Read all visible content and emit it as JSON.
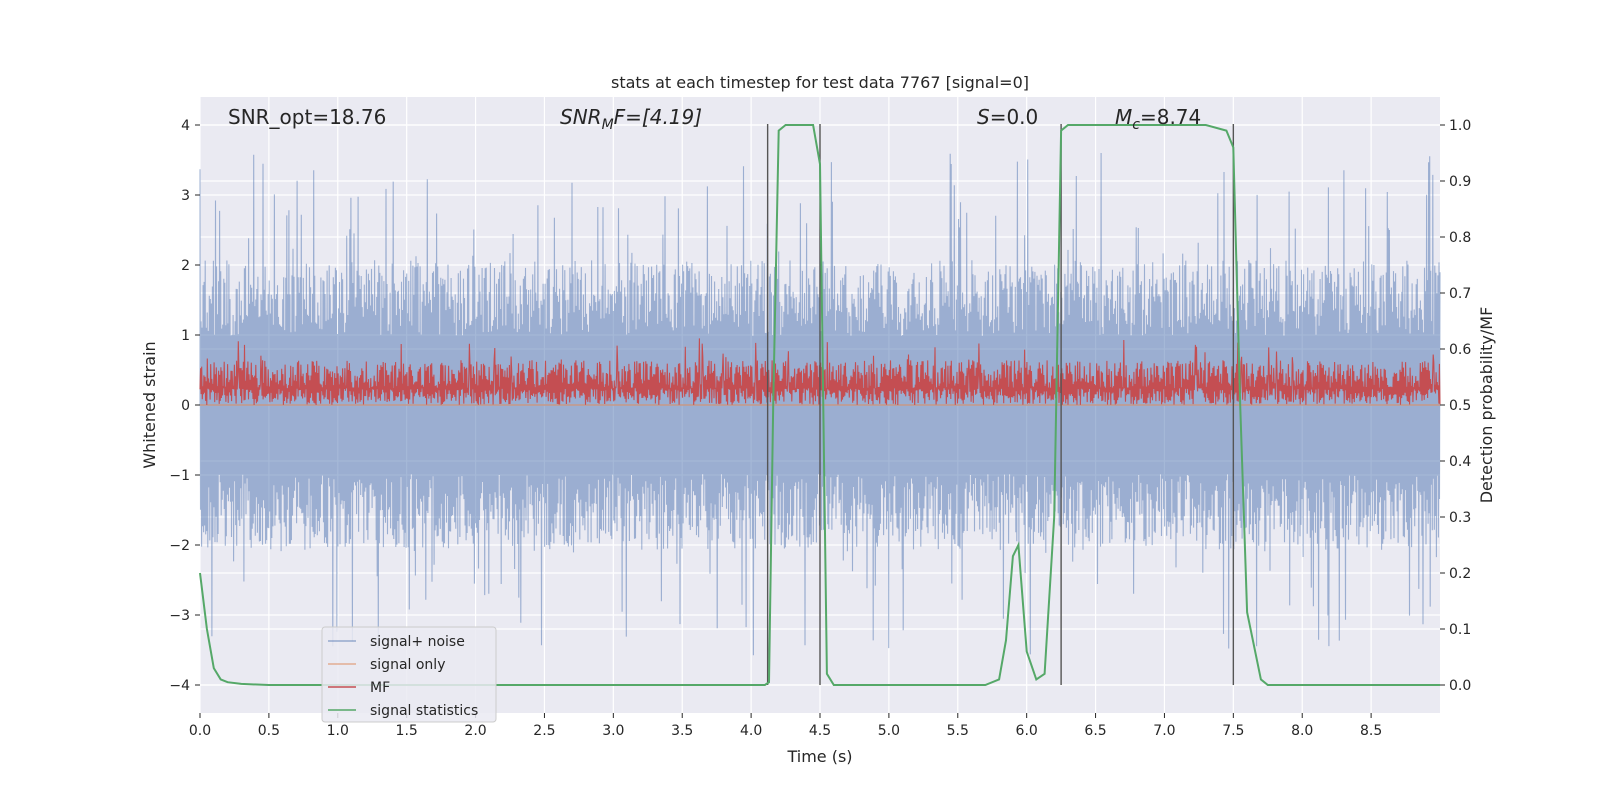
{
  "chart_data": {
    "type": "line",
    "title": "stats at each timestep for test data 7767 [signal=0]",
    "xlabel": "Time (s)",
    "ylabel_left": "Whitened strain",
    "ylabel_right": "Detection probability/MF",
    "xlim": [
      0,
      9
    ],
    "ylim_left": [
      -4.4,
      4.4
    ],
    "ylim_right": [
      -0.05,
      1.05
    ],
    "xticks": [
      0.0,
      0.5,
      1.0,
      1.5,
      2.0,
      2.5,
      3.0,
      3.5,
      4.0,
      4.5,
      5.0,
      5.5,
      6.0,
      6.5,
      7.0,
      7.5,
      8.0,
      8.5
    ],
    "xtick_labels": [
      "0.0",
      "0.5",
      "1.0",
      "1.5",
      "2.0",
      "2.5",
      "3.0",
      "3.5",
      "4.0",
      "4.5",
      "5.0",
      "5.5",
      "6.0",
      "6.5",
      "7.0",
      "7.5",
      "8.0",
      "8.5"
    ],
    "yticks_left": [
      4,
      3,
      2,
      1,
      0,
      -1,
      -2,
      -3,
      -4
    ],
    "ytick_labels_left": [
      "4",
      "3",
      "2",
      "1",
      "0",
      "−1",
      "−2",
      "−3",
      "−4"
    ],
    "yticks_right": [
      1.0,
      0.9,
      0.8,
      0.7,
      0.6,
      0.5,
      0.4,
      0.3,
      0.2,
      0.1,
      0.0
    ],
    "ytick_labels_right": [
      "1.0",
      "0.9",
      "0.8",
      "0.7",
      "0.6",
      "0.5",
      "0.4",
      "0.3",
      "0.2",
      "0.1",
      "0.0"
    ],
    "annotations": {
      "snr_opt": "SNR_opt=18.76",
      "snr_mf_main": "SNR",
      "snr_mf_sub": "M",
      "snr_mf_rest": "F=[4.19]",
      "s_main": "S",
      "s_rest": "=0.0",
      "mc_main": "M",
      "mc_sub": "c",
      "mc_rest": "=8.74"
    },
    "series": [
      {
        "name": "signal+ noise",
        "axis": "left",
        "color": "#4c72b0",
        "style": "noise",
        "amplitude_typical": 1.8,
        "amplitude_peak": 3.6
      },
      {
        "name": "signal only",
        "axis": "left",
        "color": "#dd8452",
        "style": "flat",
        "value": 0
      },
      {
        "name": "MF",
        "axis": "right",
        "color": "#c44e52",
        "style": "band",
        "center": 0.53,
        "low": 0.5,
        "high": 0.58,
        "peak": 0.62
      },
      {
        "name": "signal statistics",
        "axis": "right",
        "color": "#55a868",
        "style": "line",
        "x": [
          0.0,
          0.05,
          0.1,
          0.15,
          0.2,
          0.3,
          0.5,
          1.0,
          2.0,
          3.0,
          4.0,
          4.1,
          4.13,
          4.16,
          4.2,
          4.25,
          4.3,
          4.45,
          4.5,
          4.55,
          4.6,
          5.0,
          5.5,
          5.7,
          5.8,
          5.85,
          5.9,
          5.94,
          6.0,
          6.07,
          6.13,
          6.2,
          6.25,
          6.3,
          6.4,
          7.0,
          7.3,
          7.45,
          7.5,
          7.55,
          7.6,
          7.7,
          7.75,
          7.8,
          8.0,
          8.5,
          9.0
        ],
        "y": [
          0.2,
          0.1,
          0.03,
          0.01,
          0.005,
          0.002,
          0.0,
          0.0,
          0.0,
          0.0,
          0.0,
          0.0,
          0.005,
          0.5,
          0.99,
          1.0,
          1.0,
          1.0,
          0.93,
          0.02,
          0.0,
          0.0,
          0.0,
          0.0,
          0.01,
          0.08,
          0.23,
          0.25,
          0.06,
          0.01,
          0.02,
          0.3,
          0.99,
          1.0,
          1.0,
          1.0,
          1.0,
          0.99,
          0.96,
          0.5,
          0.13,
          0.01,
          0.0,
          0.0,
          0.0,
          0.0,
          0.0
        ]
      }
    ],
    "vertical_lines_x": [
      4.12,
      4.5,
      6.25,
      7.5
    ],
    "legend_position": "lower-left",
    "grid": true
  }
}
